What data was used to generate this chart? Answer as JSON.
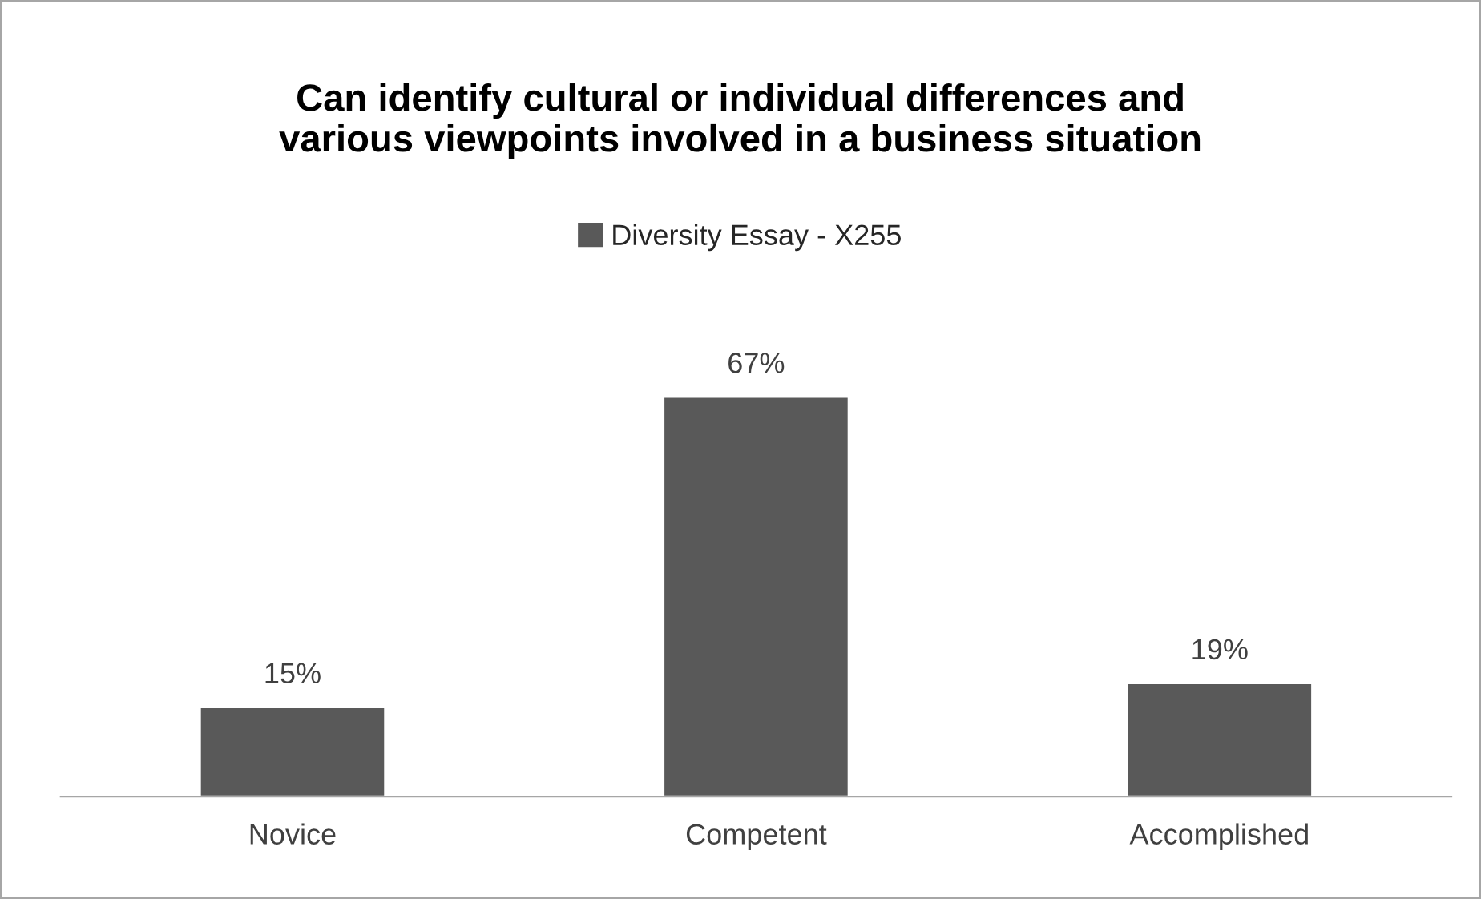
{
  "chart_data": {
    "type": "bar",
    "title": "Can identify cultural or individual differences and\nvarious viewpoints involved in a business situation",
    "categories": [
      "Novice",
      "Competent",
      "Accomplished"
    ],
    "series": [
      {
        "name": "Diversity Essay - X255",
        "color": "#595959",
        "values": [
          15,
          67,
          19
        ],
        "value_labels": [
          "15%",
          "67%",
          "19%"
        ]
      }
    ],
    "legend": "top",
    "grid": false
  }
}
